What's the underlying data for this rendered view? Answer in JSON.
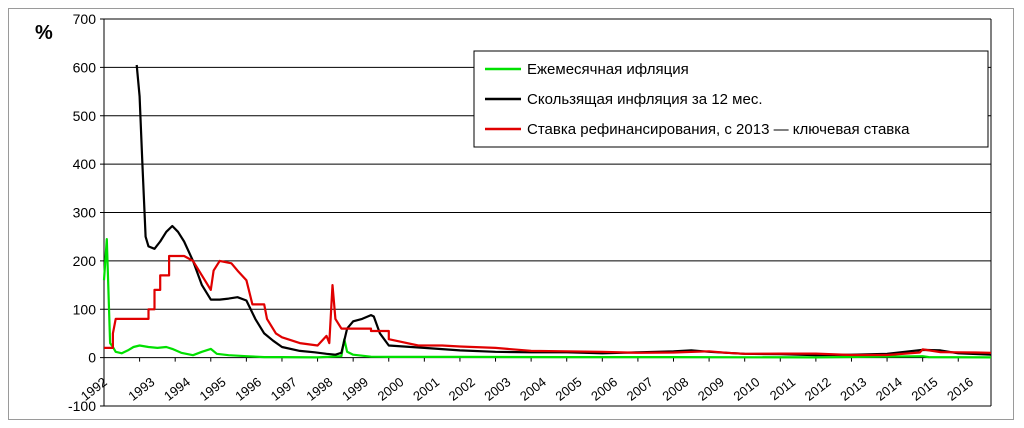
{
  "chart_data": {
    "type": "line",
    "ylabel": "%",
    "ylim": [
      -100,
      700
    ],
    "y_ticks": [
      "-100",
      "0",
      "100",
      "200",
      "300",
      "400",
      "500",
      "600",
      "700"
    ],
    "x_range": [
      1992.0,
      2016.92
    ],
    "x_tick_labels": [
      "1992",
      "1993",
      "1994",
      "1995",
      "1996",
      "1997",
      "1998",
      "1999",
      "2000",
      "2001",
      "2002",
      "2003",
      "2004",
      "2005",
      "2006",
      "2007",
      "2008",
      "2009",
      "2010",
      "2011",
      "2012",
      "2013",
      "2014",
      "2015",
      "2016"
    ],
    "grid": true,
    "legend_position": "top-right",
    "series": [
      {
        "name": "Ежемесячная ифляция",
        "color": "#00e000",
        "points": [
          [
            1992.0,
            160
          ],
          [
            1992.08,
            245
          ],
          [
            1992.17,
            30
          ],
          [
            1992.25,
            22
          ],
          [
            1992.33,
            12
          ],
          [
            1992.5,
            9
          ],
          [
            1992.67,
            15
          ],
          [
            1992.83,
            22
          ],
          [
            1993.0,
            25
          ],
          [
            1993.25,
            22
          ],
          [
            1993.5,
            20
          ],
          [
            1993.75,
            22
          ],
          [
            1993.92,
            18
          ],
          [
            1994.17,
            10
          ],
          [
            1994.5,
            5
          ],
          [
            1994.75,
            12
          ],
          [
            1995.0,
            18
          ],
          [
            1995.17,
            8
          ],
          [
            1995.5,
            5
          ],
          [
            1996.0,
            3
          ],
          [
            1996.5,
            1
          ],
          [
            1997.0,
            1
          ],
          [
            1998.0,
            0.5
          ],
          [
            1998.67,
            3
          ],
          [
            1998.75,
            38
          ],
          [
            1998.83,
            12
          ],
          [
            1999.0,
            6
          ],
          [
            1999.5,
            2
          ],
          [
            2000.0,
            1.5
          ],
          [
            2002.0,
            1.5
          ],
          [
            2005.0,
            1
          ],
          [
            2008.0,
            1
          ],
          [
            2012.0,
            0.5
          ],
          [
            2015.0,
            3
          ],
          [
            2015.17,
            1
          ],
          [
            2016.92,
            0.5
          ]
        ]
      },
      {
        "name": "Скользящая инфляция за 12 мес.",
        "color": "#000000",
        "points": [
          [
            1992.92,
            605
          ],
          [
            1993.0,
            540
          ],
          [
            1993.08,
            400
          ],
          [
            1993.17,
            250
          ],
          [
            1993.25,
            230
          ],
          [
            1993.42,
            225
          ],
          [
            1993.58,
            240
          ],
          [
            1993.75,
            260
          ],
          [
            1993.92,
            272
          ],
          [
            1994.08,
            260
          ],
          [
            1994.25,
            240
          ],
          [
            1994.5,
            200
          ],
          [
            1994.75,
            150
          ],
          [
            1995.0,
            120
          ],
          [
            1995.25,
            120
          ],
          [
            1995.5,
            122
          ],
          [
            1995.75,
            125
          ],
          [
            1996.0,
            118
          ],
          [
            1996.25,
            80
          ],
          [
            1996.5,
            50
          ],
          [
            1996.75,
            35
          ],
          [
            1997.0,
            22
          ],
          [
            1997.5,
            14
          ],
          [
            1997.92,
            11
          ],
          [
            1998.25,
            8
          ],
          [
            1998.5,
            6
          ],
          [
            1998.67,
            10
          ],
          [
            1998.83,
            60
          ],
          [
            1999.0,
            75
          ],
          [
            1999.25,
            80
          ],
          [
            1999.5,
            88
          ],
          [
            1999.58,
            85
          ],
          [
            1999.75,
            50
          ],
          [
            2000.0,
            25
          ],
          [
            2001.0,
            20
          ],
          [
            2002.0,
            15
          ],
          [
            2003.0,
            12
          ],
          [
            2004.0,
            11
          ],
          [
            2005.0,
            11
          ],
          [
            2006.0,
            9
          ],
          [
            2007.0,
            11
          ],
          [
            2008.0,
            13
          ],
          [
            2008.5,
            15
          ],
          [
            2009.0,
            12
          ],
          [
            2010.0,
            8
          ],
          [
            2011.0,
            7
          ],
          [
            2012.0,
            5
          ],
          [
            2013.0,
            6
          ],
          [
            2014.0,
            8
          ],
          [
            2015.0,
            16
          ],
          [
            2015.5,
            15
          ],
          [
            2016.0,
            9
          ],
          [
            2016.92,
            6
          ]
        ]
      },
      {
        "name": "Ставка рефинансирования, с 2013 — ключевая ставка",
        "color": "#e00000",
        "points": [
          [
            1992.0,
            20
          ],
          [
            1992.25,
            20
          ],
          [
            1992.25,
            50
          ],
          [
            1992.33,
            80
          ],
          [
            1992.92,
            80
          ],
          [
            1993.25,
            80
          ],
          [
            1993.25,
            100
          ],
          [
            1993.42,
            100
          ],
          [
            1993.42,
            140
          ],
          [
            1993.58,
            140
          ],
          [
            1993.58,
            170
          ],
          [
            1993.83,
            170
          ],
          [
            1993.83,
            210
          ],
          [
            1994.25,
            210
          ],
          [
            1994.5,
            200
          ],
          [
            1994.75,
            170
          ],
          [
            1995.0,
            140
          ],
          [
            1995.08,
            180
          ],
          [
            1995.25,
            200
          ],
          [
            1995.58,
            195
          ],
          [
            1995.75,
            180
          ],
          [
            1996.0,
            160
          ],
          [
            1996.17,
            110
          ],
          [
            1996.5,
            110
          ],
          [
            1996.58,
            80
          ],
          [
            1996.83,
            50
          ],
          [
            1997.0,
            42
          ],
          [
            1997.5,
            30
          ],
          [
            1998.0,
            25
          ],
          [
            1998.25,
            45
          ],
          [
            1998.33,
            30
          ],
          [
            1998.42,
            150
          ],
          [
            1998.5,
            80
          ],
          [
            1998.67,
            60
          ],
          [
            1999.5,
            60
          ],
          [
            1999.5,
            55
          ],
          [
            2000.0,
            55
          ],
          [
            2000.0,
            38
          ],
          [
            2000.33,
            33
          ],
          [
            2000.83,
            25
          ],
          [
            2001.5,
            25
          ],
          [
            2002.0,
            23
          ],
          [
            2003.0,
            20
          ],
          [
            2004.0,
            14
          ],
          [
            2005.0,
            13
          ],
          [
            2006.0,
            12
          ],
          [
            2007.0,
            10
          ],
          [
            2008.0,
            10.5
          ],
          [
            2009.0,
            13
          ],
          [
            2009.5,
            10
          ],
          [
            2010.0,
            8
          ],
          [
            2011.0,
            8.25
          ],
          [
            2012.0,
            8.25
          ],
          [
            2013.0,
            5.5
          ],
          [
            2014.0,
            5.5
          ],
          [
            2014.92,
            10.5
          ],
          [
            2015.0,
            17
          ],
          [
            2015.5,
            11.5
          ],
          [
            2016.0,
            11
          ],
          [
            2016.5,
            10.5
          ],
          [
            2016.92,
            10
          ]
        ]
      }
    ]
  }
}
